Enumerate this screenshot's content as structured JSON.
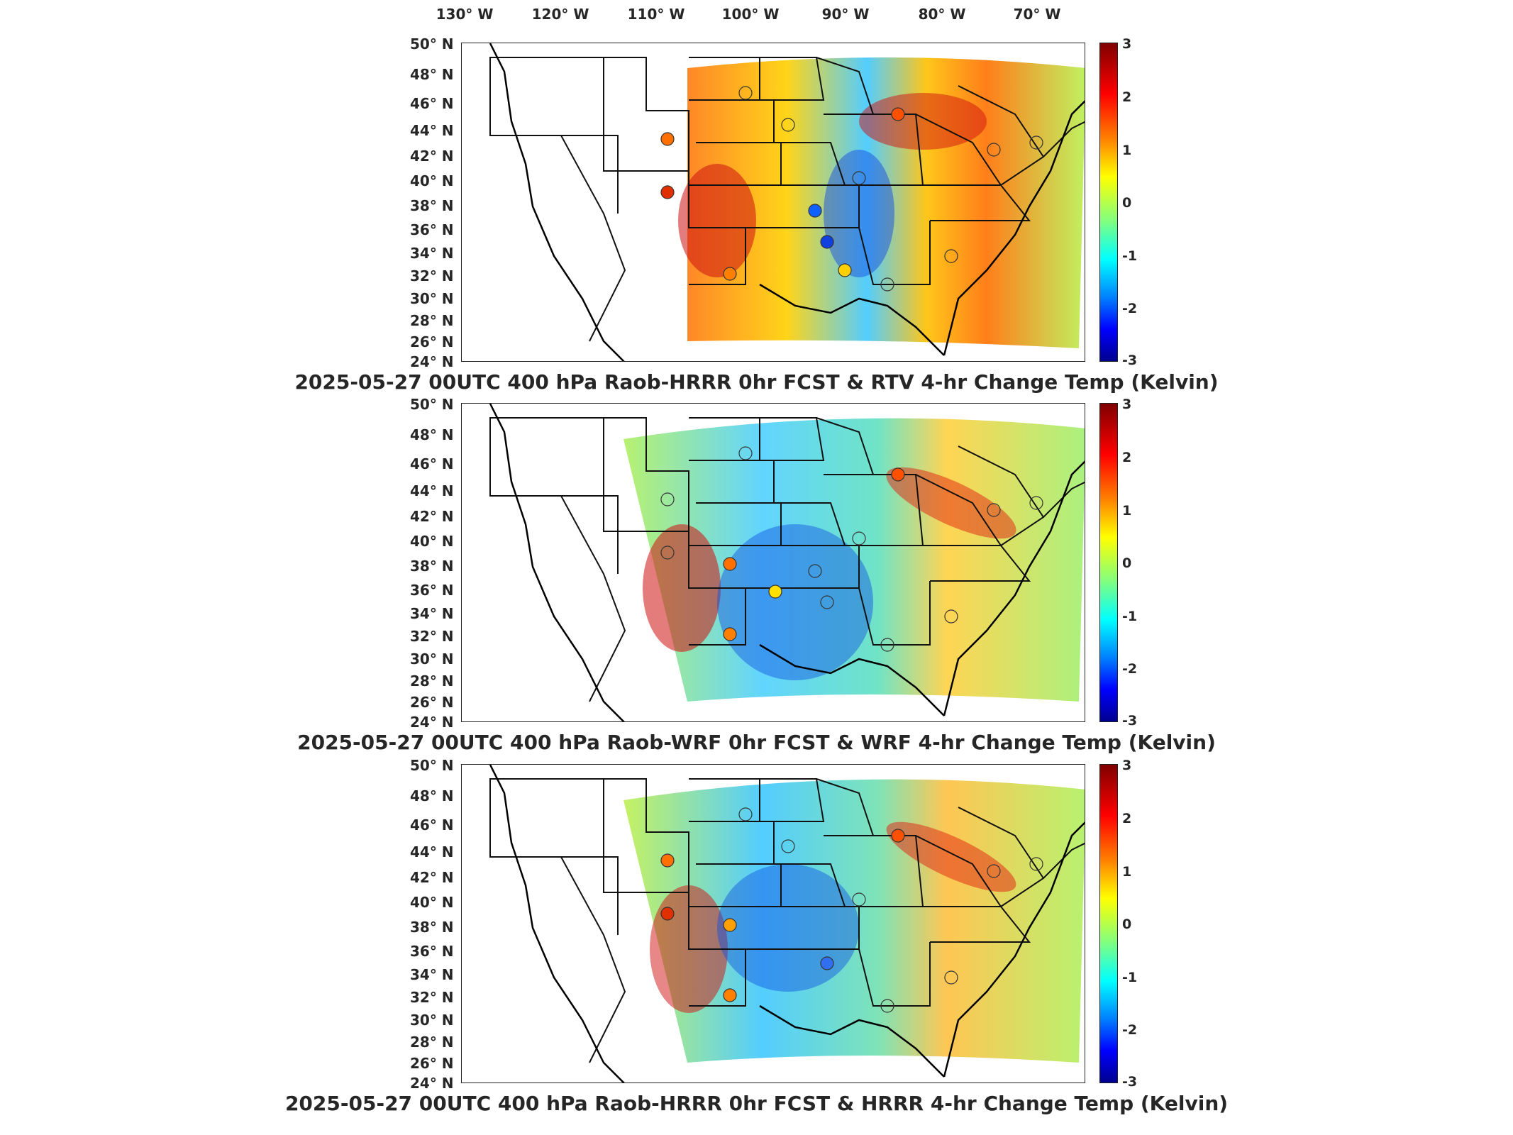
{
  "lon_labels": [
    "130° W",
    "120° W",
    "110° W",
    "100° W",
    "90° W",
    "80° W",
    "70° W"
  ],
  "lat_labels": [
    "50° N",
    "48° N",
    "46° N",
    "44° N",
    "42° N",
    "40° N",
    "38° N",
    "36° N",
    "34° N",
    "32° N",
    "30° N",
    "28° N",
    "26° N",
    "24° N"
  ],
  "colorbar_ticks": [
    "3",
    "2",
    "1",
    "0",
    "-1",
    "-2",
    "-3"
  ],
  "colors": {
    "high": "#800000",
    "mid": "#80ff80",
    "low": "#00008f",
    "border": "#222222"
  },
  "panels": [
    {
      "title": "2025-05-27 00UTC 400 hPa Raob-HRRR 0hr FCST & RTV 4-hr Change Temp (Kelvin)"
    },
    {
      "title": "2025-05-27 00UTC 400 hPa Raob-WRF 0hr FCST & WRF 4-hr Change Temp (Kelvin)"
    },
    {
      "title": "2025-05-27 00UTC 400 hPa Raob-HRRR 0hr FCST & HRRR 4-hr Change Temp (Kelvin)"
    }
  ]
}
